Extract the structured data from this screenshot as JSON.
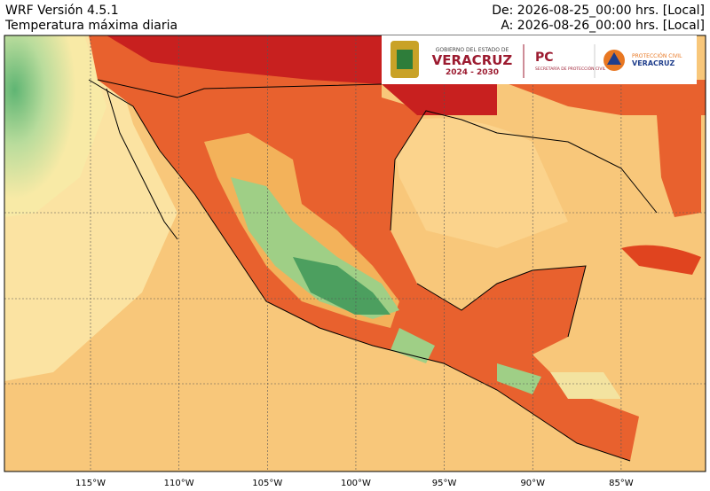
{
  "header": {
    "model": "WRF Versión 4.5.1",
    "variable": "Temperatura máxima diaria",
    "from": "De: 2026-08-25_00:00 hrs. [Local]",
    "to": "A: 2026-08-26_00:00 hrs. [Local]"
  },
  "logo": {
    "gov_line": "GOBIERNO DEL ESTADO DE",
    "state": "VERACRUZ",
    "period": "2024 - 2030",
    "pc": "PC",
    "pc_sub": "SECRETARÍA DE PROTECCIÓN CIVIL",
    "pc2_line": "PROTECCIÓN CIVIL",
    "pc2_state": "VERACRUZ"
  },
  "longitudes": [
    {
      "value": -115,
      "label": "115°W"
    },
    {
      "value": -110,
      "label": "110°W"
    },
    {
      "value": -105,
      "label": "105°W"
    },
    {
      "value": -100,
      "label": "100°W"
    },
    {
      "value": -95,
      "label": "95°W"
    },
    {
      "value": -90,
      "label": "90°W"
    },
    {
      "value": -85,
      "label": "85°W"
    }
  ]
}
